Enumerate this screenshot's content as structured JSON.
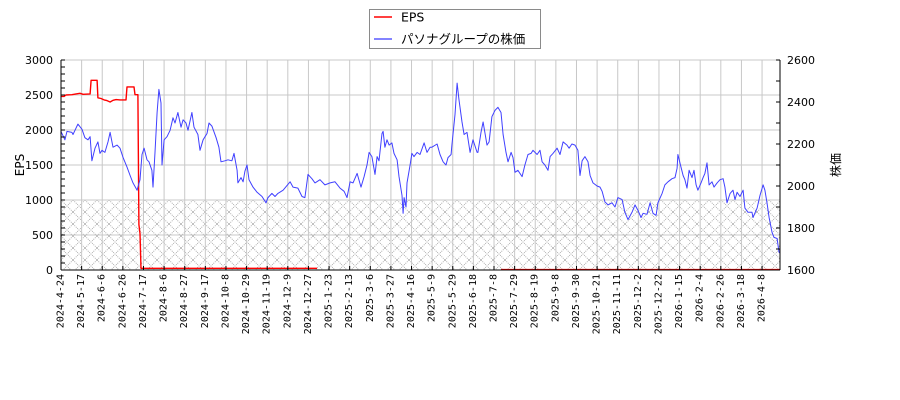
{
  "chart_data": {
    "type": "line",
    "title": "",
    "xlabel": "",
    "ylabel": "EPS",
    "ylabel_right": "株価",
    "ylim": [
      0,
      3000
    ],
    "ylim_right": [
      1600,
      2600
    ],
    "yticks": [
      0,
      500,
      1000,
      1500,
      2000,
      2500,
      3000
    ],
    "yticks_right": [
      1600,
      1800,
      2000,
      2200,
      2400,
      2600
    ],
    "ytick_minor_step": 100,
    "ytick_minor_step_right": 100,
    "grid": true,
    "legend_position": "top-center",
    "x_unit": "tick index (0 = first tick label, 34 = last tick label)",
    "x_range": [
      0,
      34.87
    ],
    "x_tick_labels": [
      "2024-4-24",
      "2024-5-17",
      "2024-6-6",
      "2024-6-26",
      "2024-7-17",
      "2024-8-6",
      "2024-8-27",
      "2024-9-17",
      "2024-10-8",
      "2024-10-29",
      "2024-11-19",
      "2024-12-9",
      "2024-12-27",
      "2025-1-23",
      "2025-2-13",
      "2025-3-6",
      "2025-3-27",
      "2025-4-16",
      "2025-5-9",
      "2025-5-29",
      "2025-6-18",
      "2025-7-8",
      "2025-7-29",
      "2025-8-19",
      "2025-9-8",
      "2025-9-30",
      "2025-10-21",
      "2025-11-11",
      "2025-12-2",
      "2025-12-22",
      "2026-1-15",
      "2026-2-4",
      "2026-2-26",
      "2026-3-18",
      "2026-4-8"
    ],
    "shaded_region": {
      "axis": "left",
      "from": 0,
      "to": 1000,
      "pattern": "crosshatch",
      "color": "#a0a0a0"
    },
    "legend": [
      {
        "label": "EPS",
        "color": "#ff0000"
      },
      {
        "label": "パソナグループの株価",
        "color": "#5a5aff"
      }
    ],
    "series": [
      {
        "name": "EPS",
        "axis": "left",
        "color": "#ff0000",
        "segments": [
          [
            [
              0,
              2480
            ],
            [
              0.15,
              2480
            ],
            [
              0.24,
              2500
            ],
            [
              0.53,
              2505
            ],
            [
              0.73,
              2515
            ],
            [
              0.92,
              2525
            ],
            [
              1.07,
              2510
            ],
            [
              1.41,
              2515
            ],
            [
              1.46,
              2710
            ],
            [
              1.75,
              2710
            ],
            [
              1.79,
              2460
            ],
            [
              1.94,
              2450
            ],
            [
              2.09,
              2430
            ],
            [
              2.23,
              2420
            ],
            [
              2.38,
              2400
            ],
            [
              2.52,
              2425
            ],
            [
              2.67,
              2435
            ],
            [
              2.86,
              2430
            ],
            [
              3.15,
              2430
            ],
            [
              3.2,
              2615
            ],
            [
              3.54,
              2615
            ],
            [
              3.59,
              2505
            ],
            [
              3.73,
              2505
            ],
            [
              3.78,
              650
            ],
            [
              3.83,
              520
            ],
            [
              3.88,
              25
            ],
            [
              12.42,
              25
            ]
          ],
          [
            [
              21.34,
              5
            ],
            [
              34.87,
              5
            ]
          ]
        ]
      },
      {
        "name": "パソナグループの株価",
        "axis": "right",
        "color": "#4040ff",
        "points": [
          [
            0,
            2260
          ],
          [
            0.19,
            2220
          ],
          [
            0.29,
            2260
          ],
          [
            0.53,
            2255
          ],
          [
            0.58,
            2245
          ],
          [
            0.82,
            2295
          ],
          [
            1.02,
            2270
          ],
          [
            1.16,
            2230
          ],
          [
            1.31,
            2220
          ],
          [
            1.41,
            2235
          ],
          [
            1.5,
            2120
          ],
          [
            1.65,
            2180
          ],
          [
            1.79,
            2210
          ],
          [
            1.89,
            2155
          ],
          [
            1.99,
            2170
          ],
          [
            2.13,
            2160
          ],
          [
            2.28,
            2210
          ],
          [
            2.38,
            2255
          ],
          [
            2.52,
            2185
          ],
          [
            2.72,
            2195
          ],
          [
            2.86,
            2180
          ],
          [
            3.01,
            2135
          ],
          [
            3.2,
            2090
          ],
          [
            3.35,
            2050
          ],
          [
            3.49,
            2015
          ],
          [
            3.69,
            1980
          ],
          [
            3.73,
            1995
          ],
          [
            3.83,
            2030
          ],
          [
            3.93,
            2150
          ],
          [
            4.03,
            2180
          ],
          [
            4.17,
            2125
          ],
          [
            4.27,
            2115
          ],
          [
            4.41,
            2075
          ],
          [
            4.46,
            1995
          ],
          [
            4.56,
            2160
          ],
          [
            4.66,
            2350
          ],
          [
            4.75,
            2460
          ],
          [
            4.85,
            2395
          ],
          [
            4.9,
            2100
          ],
          [
            5,
            2220
          ],
          [
            5.14,
            2235
          ],
          [
            5.29,
            2265
          ],
          [
            5.43,
            2325
          ],
          [
            5.53,
            2300
          ],
          [
            5.67,
            2350
          ],
          [
            5.82,
            2280
          ],
          [
            5.92,
            2315
          ],
          [
            6.06,
            2300
          ],
          [
            6.16,
            2265
          ],
          [
            6.35,
            2350
          ],
          [
            6.45,
            2280
          ],
          [
            6.64,
            2245
          ],
          [
            6.74,
            2170
          ],
          [
            6.89,
            2220
          ],
          [
            7.08,
            2250
          ],
          [
            7.18,
            2300
          ],
          [
            7.32,
            2285
          ],
          [
            7.52,
            2230
          ],
          [
            7.66,
            2185
          ],
          [
            7.76,
            2115
          ],
          [
            7.95,
            2120
          ],
          [
            8.1,
            2125
          ],
          [
            8.29,
            2120
          ],
          [
            8.39,
            2155
          ],
          [
            8.54,
            2075
          ],
          [
            8.58,
            2015
          ],
          [
            8.73,
            2040
          ],
          [
            8.83,
            2020
          ],
          [
            8.92,
            2070
          ],
          [
            9.02,
            2100
          ],
          [
            9.12,
            2030
          ],
          [
            9.31,
            1995
          ],
          [
            9.51,
            1970
          ],
          [
            9.75,
            1950
          ],
          [
            9.94,
            1920
          ],
          [
            10.04,
            1945
          ],
          [
            10.23,
            1965
          ],
          [
            10.38,
            1950
          ],
          [
            10.52,
            1965
          ],
          [
            10.77,
            1980
          ],
          [
            11.11,
            2020
          ],
          [
            11.25,
            1995
          ],
          [
            11.49,
            1990
          ],
          [
            11.69,
            1950
          ],
          [
            11.83,
            1945
          ],
          [
            11.98,
            2055
          ],
          [
            12.17,
            2035
          ],
          [
            12.32,
            2015
          ],
          [
            12.56,
            2030
          ],
          [
            12.8,
            2005
          ],
          [
            13.05,
            2015
          ],
          [
            13.29,
            2020
          ],
          [
            13.53,
            1990
          ],
          [
            13.73,
            1975
          ],
          [
            13.87,
            1945
          ],
          [
            14.02,
            2020
          ],
          [
            14.16,
            2015
          ],
          [
            14.36,
            2060
          ],
          [
            14.55,
            1995
          ],
          [
            14.7,
            2045
          ],
          [
            14.84,
            2100
          ],
          [
            14.94,
            2160
          ],
          [
            15.08,
            2140
          ],
          [
            15.23,
            2055
          ],
          [
            15.33,
            2140
          ],
          [
            15.42,
            2120
          ],
          [
            15.57,
            2250
          ],
          [
            15.62,
            2260
          ],
          [
            15.71,
            2185
          ],
          [
            15.81,
            2220
          ],
          [
            15.91,
            2195
          ],
          [
            16.05,
            2205
          ],
          [
            16.15,
            2155
          ],
          [
            16.3,
            2125
          ],
          [
            16.39,
            2045
          ],
          [
            16.54,
            1955
          ],
          [
            16.59,
            1870
          ],
          [
            16.64,
            1945
          ],
          [
            16.73,
            1900
          ],
          [
            16.78,
            2015
          ],
          [
            16.93,
            2100
          ],
          [
            17.02,
            2155
          ],
          [
            17.12,
            2140
          ],
          [
            17.27,
            2160
          ],
          [
            17.41,
            2150
          ],
          [
            17.61,
            2205
          ],
          [
            17.75,
            2160
          ],
          [
            17.9,
            2185
          ],
          [
            17.99,
            2185
          ],
          [
            18.24,
            2200
          ],
          [
            18.38,
            2150
          ],
          [
            18.53,
            2115
          ],
          [
            18.67,
            2100
          ],
          [
            18.77,
            2135
          ],
          [
            18.92,
            2150
          ],
          [
            18.96,
            2195
          ],
          [
            19.11,
            2340
          ],
          [
            19.21,
            2490
          ],
          [
            19.3,
            2410
          ],
          [
            19.45,
            2305
          ],
          [
            19.55,
            2245
          ],
          [
            19.69,
            2255
          ],
          [
            19.84,
            2160
          ],
          [
            19.98,
            2220
          ],
          [
            20.18,
            2160
          ],
          [
            20.22,
            2160
          ],
          [
            20.37,
            2255
          ],
          [
            20.47,
            2305
          ],
          [
            20.66,
            2195
          ],
          [
            20.76,
            2210
          ],
          [
            20.9,
            2330
          ],
          [
            21.05,
            2360
          ],
          [
            21.19,
            2375
          ],
          [
            21.34,
            2350
          ],
          [
            21.44,
            2245
          ],
          [
            21.58,
            2160
          ],
          [
            21.68,
            2115
          ],
          [
            21.83,
            2160
          ],
          [
            21.92,
            2135
          ],
          [
            22.02,
            2065
          ],
          [
            22.16,
            2075
          ],
          [
            22.36,
            2045
          ],
          [
            22.5,
            2100
          ],
          [
            22.65,
            2150
          ],
          [
            22.8,
            2155
          ],
          [
            22.89,
            2170
          ],
          [
            23.09,
            2150
          ],
          [
            23.23,
            2170
          ],
          [
            23.33,
            2115
          ],
          [
            23.47,
            2100
          ],
          [
            23.62,
            2075
          ],
          [
            23.72,
            2140
          ],
          [
            23.86,
            2155
          ],
          [
            24.06,
            2180
          ],
          [
            24.2,
            2150
          ],
          [
            24.35,
            2210
          ],
          [
            24.54,
            2195
          ],
          [
            24.64,
            2180
          ],
          [
            24.78,
            2200
          ],
          [
            24.93,
            2195
          ],
          [
            25.07,
            2170
          ],
          [
            25.17,
            2050
          ],
          [
            25.27,
            2120
          ],
          [
            25.41,
            2140
          ],
          [
            25.56,
            2115
          ],
          [
            25.66,
            2050
          ],
          [
            25.8,
            2015
          ],
          [
            26,
            2000
          ],
          [
            26.14,
            1995
          ],
          [
            26.24,
            1975
          ],
          [
            26.38,
            1925
          ],
          [
            26.53,
            1910
          ],
          [
            26.72,
            1920
          ],
          [
            26.87,
            1900
          ],
          [
            27.01,
            1945
          ],
          [
            27.21,
            1935
          ],
          [
            27.35,
            1875
          ],
          [
            27.5,
            1840
          ],
          [
            27.69,
            1875
          ],
          [
            27.84,
            1910
          ],
          [
            27.98,
            1885
          ],
          [
            28.13,
            1850
          ],
          [
            28.23,
            1870
          ],
          [
            28.42,
            1865
          ],
          [
            28.57,
            1920
          ],
          [
            28.71,
            1870
          ],
          [
            28.86,
            1860
          ],
          [
            28.95,
            1920
          ],
          [
            29.15,
            1965
          ],
          [
            29.29,
            2005
          ],
          [
            29.44,
            2020
          ],
          [
            29.63,
            2035
          ],
          [
            29.78,
            2040
          ],
          [
            29.88,
            2085
          ],
          [
            29.92,
            2150
          ],
          [
            30.07,
            2090
          ],
          [
            30.17,
            2050
          ],
          [
            30.26,
            2030
          ],
          [
            30.36,
            1990
          ],
          [
            30.46,
            2075
          ],
          [
            30.6,
            2040
          ],
          [
            30.7,
            2075
          ],
          [
            30.8,
            2005
          ],
          [
            30.89,
            1980
          ],
          [
            31.04,
            2015
          ],
          [
            31.14,
            2040
          ],
          [
            31.23,
            2060
          ],
          [
            31.33,
            2110
          ],
          [
            31.43,
            2005
          ],
          [
            31.57,
            2020
          ],
          [
            31.67,
            1995
          ],
          [
            31.82,
            2015
          ],
          [
            31.96,
            2030
          ],
          [
            32.11,
            2035
          ],
          [
            32.2,
            1995
          ],
          [
            32.3,
            1920
          ],
          [
            32.45,
            1965
          ],
          [
            32.59,
            1980
          ],
          [
            32.69,
            1935
          ],
          [
            32.79,
            1970
          ],
          [
            32.93,
            1950
          ],
          [
            33.08,
            1980
          ],
          [
            33.17,
            1895
          ],
          [
            33.32,
            1875
          ],
          [
            33.51,
            1875
          ],
          [
            33.56,
            1850
          ],
          [
            33.76,
            1895
          ],
          [
            33.9,
            1955
          ],
          [
            34.05,
            2005
          ],
          [
            34.14,
            1980
          ],
          [
            34.24,
            1920
          ],
          [
            34.34,
            1850
          ],
          [
            34.48,
            1780
          ],
          [
            34.58,
            1755
          ],
          [
            34.73,
            1750
          ],
          [
            34.82,
            1685
          ],
          [
            34.87,
            1680
          ]
        ]
      }
    ]
  }
}
